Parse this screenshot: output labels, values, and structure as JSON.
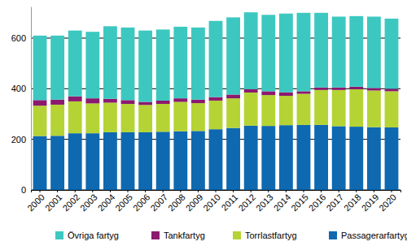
{
  "chart_data": {
    "type": "bar",
    "stacked": true,
    "grid": true,
    "legend": "bottom",
    "categories": [
      "2000",
      "2001",
      "2002",
      "2003",
      "2004",
      "2005",
      "2006",
      "2007",
      "2008",
      "2009",
      "2010",
      "2011",
      "2012",
      "2013",
      "2014",
      "2015",
      "2016",
      "2017",
      "2018",
      "2019",
      "2020"
    ],
    "ylim": [
      0,
      725
    ],
    "yticks": [
      0,
      200,
      400,
      600
    ],
    "series": [
      {
        "name": "Passagerarfartyg",
        "color": "#0f69b0",
        "values": [
          213,
          214,
          224,
          224,
          228,
          228,
          228,
          230,
          232,
          233,
          240,
          245,
          254,
          253,
          256,
          257,
          257,
          252,
          250,
          248,
          247
        ]
      },
      {
        "name": "Torrlastfartyg",
        "color": "#b5d334",
        "values": [
          120,
          123,
          126,
          118,
          117,
          112,
          108,
          110,
          116,
          110,
          113,
          117,
          131,
          122,
          116,
          123,
          138,
          143,
          148,
          145,
          143
        ]
      },
      {
        "name": "Tankfartyg",
        "color": "#8b1a6f",
        "values": [
          22,
          20,
          20,
          20,
          15,
          15,
          12,
          13,
          14,
          14,
          14,
          15,
          13,
          15,
          14,
          10,
          10,
          10,
          10,
          10,
          10
        ]
      },
      {
        "name": "Övriga fartyg",
        "color": "#3cc8c0",
        "values": [
          255,
          253,
          260,
          263,
          287,
          287,
          282,
          281,
          283,
          285,
          301,
          305,
          304,
          302,
          311,
          310,
          295,
          280,
          279,
          282,
          277
        ]
      }
    ]
  }
}
